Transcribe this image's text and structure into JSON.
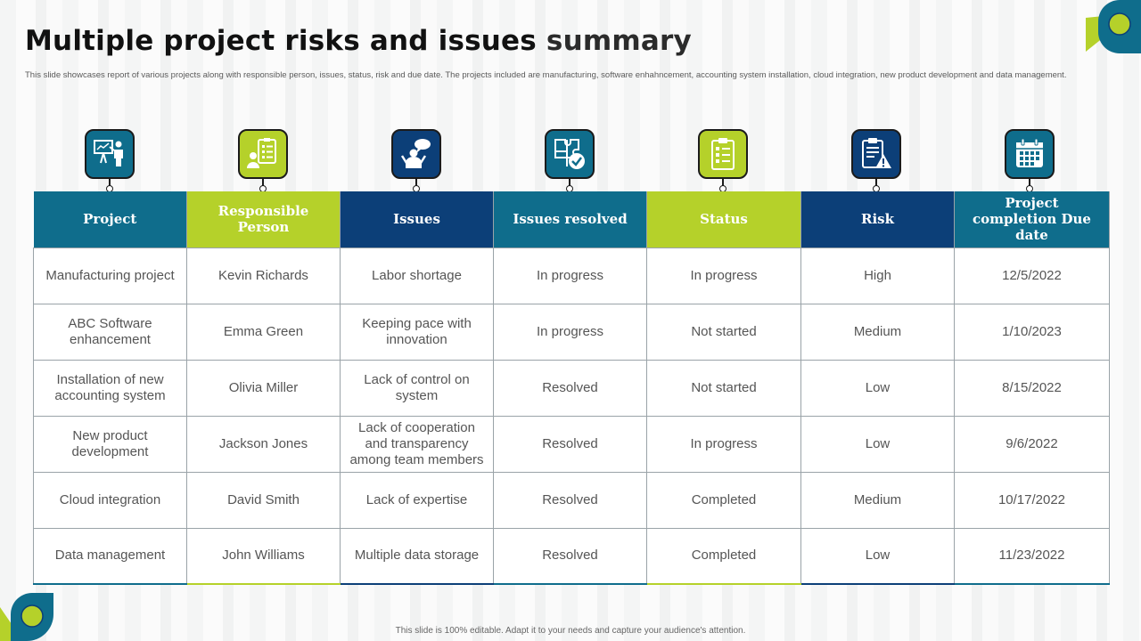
{
  "header": {
    "title_bold": "Multiple project risks and issues",
    "title_light": "summary",
    "subtitle": "This slide showcases report of various projects along with responsible person, issues, status, risk and due date. The projects included are manufacturing, software enhahncement, accounting system installation, cloud integration, new product development and data management."
  },
  "colors": {
    "teal": "#0f6d8c",
    "lime": "#b5d12a",
    "navy": "#0c3f78"
  },
  "columns": [
    {
      "label": "Project",
      "icon": "presentation-icon",
      "color": "teal"
    },
    {
      "label": "Responsible Person",
      "icon": "checklist-person-icon",
      "color": "lime"
    },
    {
      "label": "Issues",
      "icon": "speech-bubble-person-icon",
      "color": "navy"
    },
    {
      "label": "Issues resolved",
      "icon": "puzzle-check-icon",
      "color": "teal"
    },
    {
      "label": "Status",
      "icon": "clipboard-list-icon",
      "color": "lime"
    },
    {
      "label": "Risk",
      "icon": "clipboard-warning-icon",
      "color": "navy"
    },
    {
      "label": "Project completion Due date",
      "icon": "calendar-icon",
      "color": "teal"
    }
  ],
  "rows": [
    [
      "Manufacturing project",
      "Kevin Richards",
      "Labor shortage",
      "In progress",
      "In progress",
      "High",
      "12/5/2022"
    ],
    [
      "ABC Software enhancement",
      "Emma Green",
      "Keeping pace with innovation",
      "In progress",
      "Not started",
      "Medium",
      "1/10/2023"
    ],
    [
      "Installation of new accounting system",
      "Olivia Miller",
      "Lack of control on system",
      "Resolved",
      "Not started",
      "Low",
      "8/15/2022"
    ],
    [
      "New product development",
      "Jackson Jones",
      "Lack of cooperation and transparency among team members",
      "Resolved",
      "In progress",
      "Low",
      "9/6/2022"
    ],
    [
      "Cloud integration",
      "David Smith",
      "Lack of expertise",
      "Resolved",
      "Completed",
      "Medium",
      "10/17/2022"
    ],
    [
      "Data management",
      "John Williams",
      "Multiple  data storage",
      "Resolved",
      "Completed",
      "Low",
      "11/23/2022"
    ]
  ],
  "footer": {
    "text": "This slide is 100% editable. Adapt it to your needs and capture your audience's attention."
  }
}
